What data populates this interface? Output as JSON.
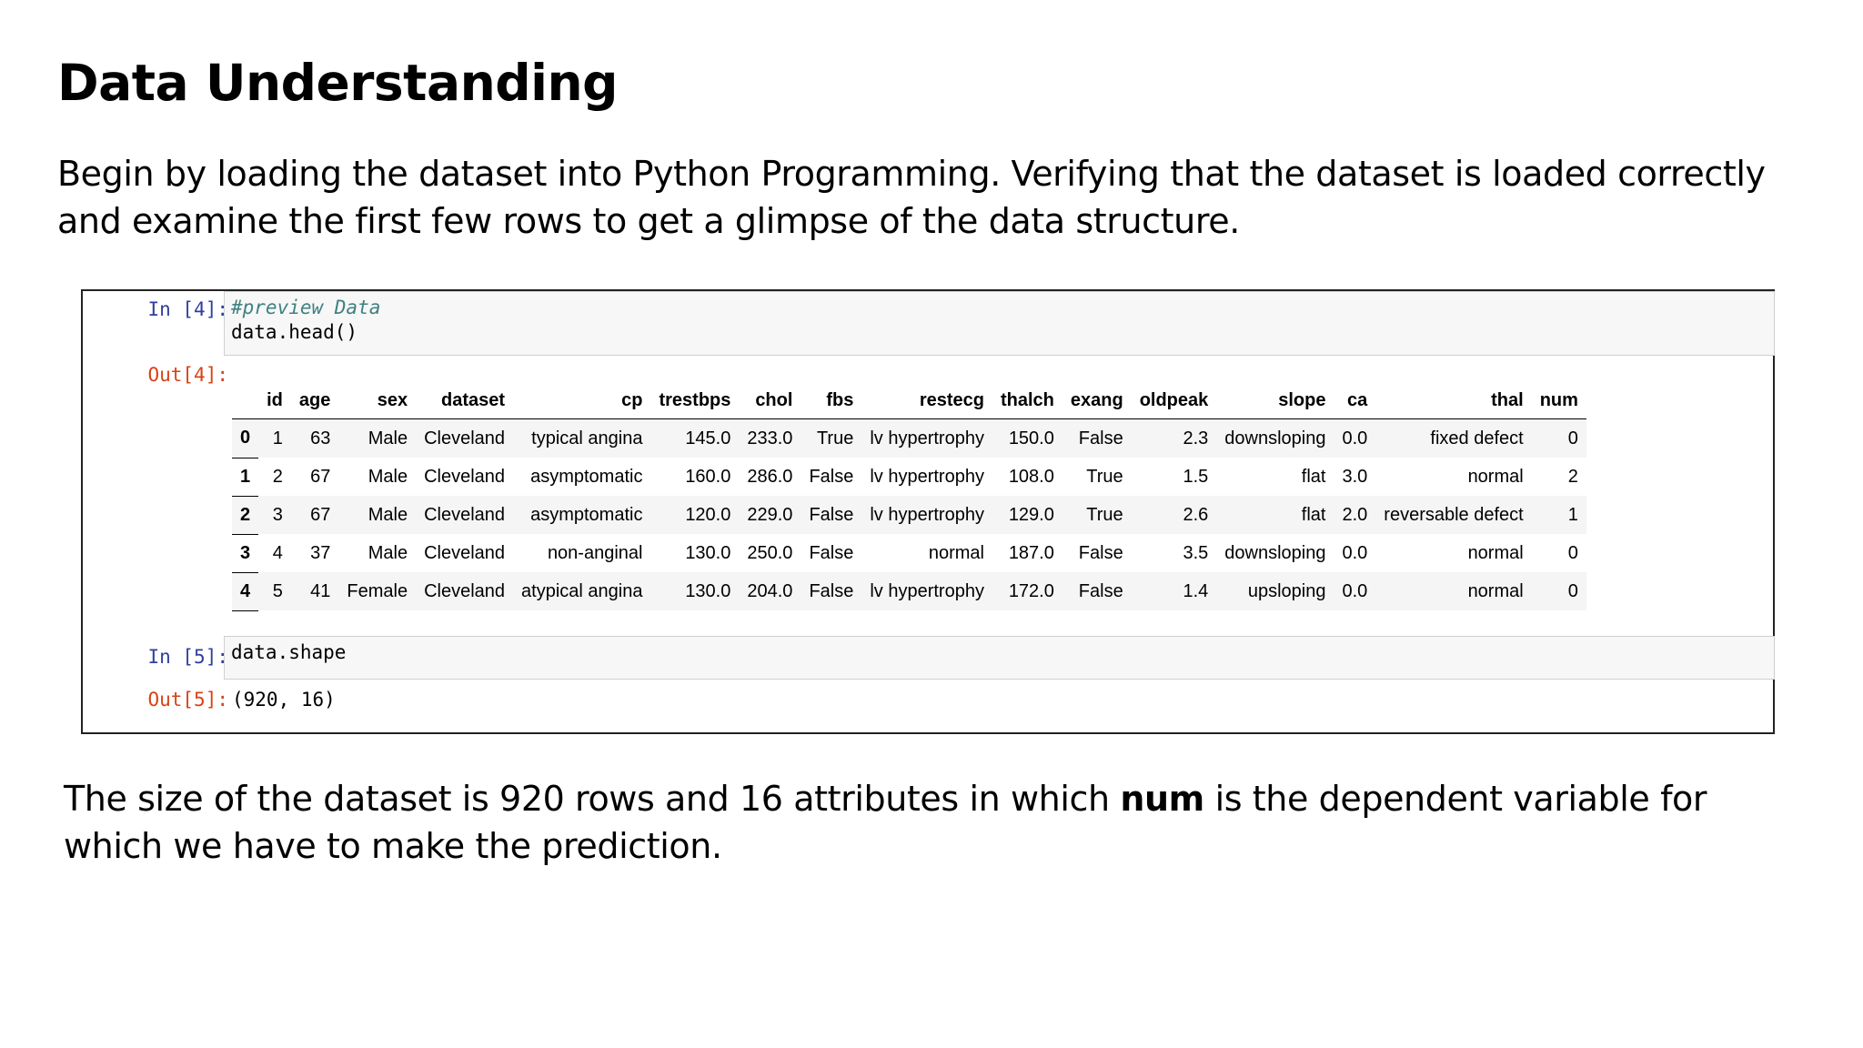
{
  "title": "Data Understanding",
  "intro": "Begin by loading the dataset into Python Programming. Verifying that the dataset is loaded correctly and examine the first few rows to get a glimpse of the data structure.",
  "notebook": {
    "cell1": {
      "in_prompt": "In [4]:",
      "comment": "#preview Data",
      "code": "data.head()",
      "out_prompt": "Out[4]:"
    },
    "table": {
      "columns": [
        "id",
        "age",
        "sex",
        "dataset",
        "cp",
        "trestbps",
        "chol",
        "fbs",
        "restecg",
        "thalch",
        "exang",
        "oldpeak",
        "slope",
        "ca",
        "thal",
        "num"
      ],
      "rows": [
        {
          "index": "0",
          "cells": [
            "1",
            "63",
            "Male",
            "Cleveland",
            "typical angina",
            "145.0",
            "233.0",
            "True",
            "lv hypertrophy",
            "150.0",
            "False",
            "2.3",
            "downsloping",
            "0.0",
            "fixed defect",
            "0"
          ]
        },
        {
          "index": "1",
          "cells": [
            "2",
            "67",
            "Male",
            "Cleveland",
            "asymptomatic",
            "160.0",
            "286.0",
            "False",
            "lv hypertrophy",
            "108.0",
            "True",
            "1.5",
            "flat",
            "3.0",
            "normal",
            "2"
          ]
        },
        {
          "index": "2",
          "cells": [
            "3",
            "67",
            "Male",
            "Cleveland",
            "asymptomatic",
            "120.0",
            "229.0",
            "False",
            "lv hypertrophy",
            "129.0",
            "True",
            "2.6",
            "flat",
            "2.0",
            "reversable defect",
            "1"
          ]
        },
        {
          "index": "3",
          "cells": [
            "4",
            "37",
            "Male",
            "Cleveland",
            "non-anginal",
            "130.0",
            "250.0",
            "False",
            "normal",
            "187.0",
            "False",
            "3.5",
            "downsloping",
            "0.0",
            "normal",
            "0"
          ]
        },
        {
          "index": "4",
          "cells": [
            "5",
            "41",
            "Female",
            "Cleveland",
            "atypical angina",
            "130.0",
            "204.0",
            "False",
            "lv hypertrophy",
            "172.0",
            "False",
            "1.4",
            "upsloping",
            "0.0",
            "normal",
            "0"
          ]
        }
      ]
    },
    "cell2": {
      "in_prompt": "In [5]:",
      "code": "data.shape",
      "out_prompt": "Out[5]:",
      "output": "(920, 16)"
    }
  },
  "conclusion": {
    "before": "The size of the dataset is 920 rows and 16 attributes in which ",
    "bold": "num",
    "after": " is the dependent variable for which we have to make the prediction."
  }
}
